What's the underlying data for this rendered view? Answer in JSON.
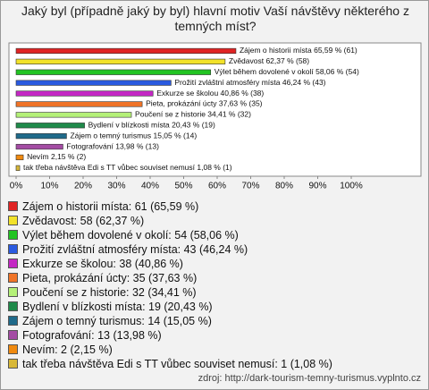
{
  "chart_data": {
    "type": "bar",
    "orientation": "horizontal",
    "title": "Jaký byl (případně jaký by byl) hlavní motiv Vaší návštěvy některého z temných míst?",
    "categories": [
      "Zájem o historii místa",
      "Zvědavost",
      "Výlet během dovolené v okolí",
      "Prožití zvláštní atmosféry místa",
      "Exkurze se školou",
      "Pieta, prokázání úcty",
      "Poučení se z historie",
      "Bydlení v blízkosti místa",
      "Zájem o temný turismus",
      "Fotografování",
      "Nevím",
      "tak třeba návštěva Edi s TT vůbec souviset nemusí"
    ],
    "values": [
      65.59,
      62.37,
      58.06,
      46.24,
      40.86,
      37.63,
      34.41,
      20.43,
      15.05,
      13.98,
      2.15,
      1.08
    ],
    "value_labels": [
      "Zájem o historii místa 65,59 % (61)",
      "Zvědavost 62,37 % (58)",
      "Výlet během dovolené v okolí 58,06 % (54)",
      "Prožití zvláštní atmosféry místa 46,24 % (43)",
      "Exkurze se školou 40,86 % (38)",
      "Pieta, prokázání úcty 37,63 % (35)",
      "Poučení se z historie 34,41 % (32)",
      "Bydlení v blízkosti místa 20,43 % (19)",
      "Zájem o temný turismus 15,05 % (14)",
      "Fotografování 13,98 % (13)",
      "Nevím 2,15 % (2)",
      "tak třeba návštěva Edi s TT vůbec souviset nemusí 1,08 % (1)"
    ],
    "legend": [
      "Zájem o historii místa: 61 (65,59 %)",
      "Zvědavost: 58 (62,37 %)",
      "Výlet během dovolené v okolí: 54 (58,06 %)",
      "Prožití zvláštní atmosféry místa: 43 (46,24 %)",
      "Exkurze se školou: 38 (40,86 %)",
      "Pieta, prokázání úcty: 35 (37,63 %)",
      "Poučení se z historie: 32 (34,41 %)",
      "Bydlení v blízkosti místa: 19 (20,43 %)",
      "Zájem o temný turismus: 14 (15,05 %)",
      "Fotografování: 13 (13,98 %)",
      "Nevím: 2 (2,15 %)",
      "tak třeba návštěva Edi s TT vůbec souviset nemusí: 1 (1,08 %)"
    ],
    "colors": [
      "#e02424",
      "#f2e22a",
      "#22c422",
      "#2a5ae0",
      "#c428c4",
      "#f07428",
      "#b4f078",
      "#1f8a4a",
      "#1f6a8a",
      "#a44ca4",
      "#f08a10",
      "#d8b838"
    ],
    "xlim": [
      0,
      100
    ],
    "xticks": [
      {
        "value": 0,
        "label": "0%"
      },
      {
        "value": 10,
        "label": "10%"
      },
      {
        "value": 20,
        "label": "20%"
      },
      {
        "value": 30,
        "label": "30%"
      },
      {
        "value": 40,
        "label": "40%"
      },
      {
        "value": 50,
        "label": "50%"
      },
      {
        "value": 60,
        "label": "60%"
      },
      {
        "value": 70,
        "label": "70%"
      },
      {
        "value": 80,
        "label": "80%"
      },
      {
        "value": 90,
        "label": "90%"
      },
      {
        "value": 100,
        "label": "100%"
      }
    ],
    "source": "zdroj: http://dark-tourism-temny-turismus.vyplnto.cz"
  }
}
